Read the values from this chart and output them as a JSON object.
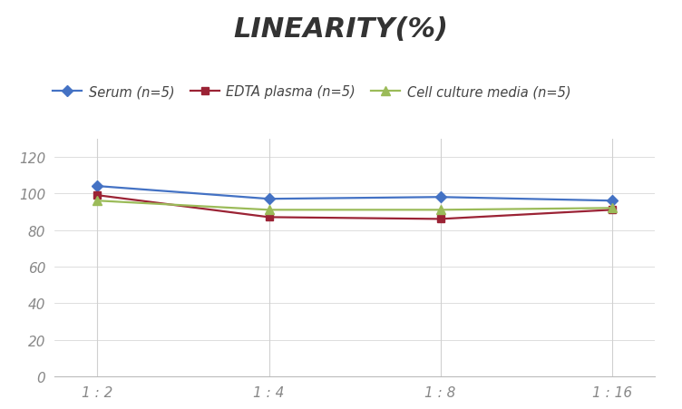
{
  "title": "LINEARITY(%)",
  "x_labels": [
    "1 : 2",
    "1 : 4",
    "1 : 8",
    "1 : 16"
  ],
  "x_positions": [
    0,
    1,
    2,
    3
  ],
  "series": [
    {
      "label": "Serum (n=5)",
      "values": [
        104,
        97,
        98,
        96
      ],
      "color": "#4472C4",
      "marker": "D",
      "marker_size": 6,
      "linewidth": 1.6
    },
    {
      "label": "EDTA plasma (n=5)",
      "values": [
        99,
        87,
        86,
        91
      ],
      "color": "#9B2335",
      "marker": "s",
      "marker_size": 6,
      "linewidth": 1.6
    },
    {
      "label": "Cell culture media (n=5)",
      "values": [
        96,
        91,
        91,
        92
      ],
      "color": "#9BBB59",
      "marker": "^",
      "marker_size": 7,
      "linewidth": 1.6
    }
  ],
  "ylim": [
    0,
    130
  ],
  "yticks": [
    0,
    20,
    40,
    60,
    80,
    100,
    120
  ],
  "background_color": "#FFFFFF",
  "grid_color": "#D0D0D0",
  "title_fontsize": 22,
  "title_fontstyle": "italic",
  "title_fontweight": "bold",
  "legend_fontsize": 10.5,
  "tick_fontsize": 11,
  "tick_color": "#888888"
}
